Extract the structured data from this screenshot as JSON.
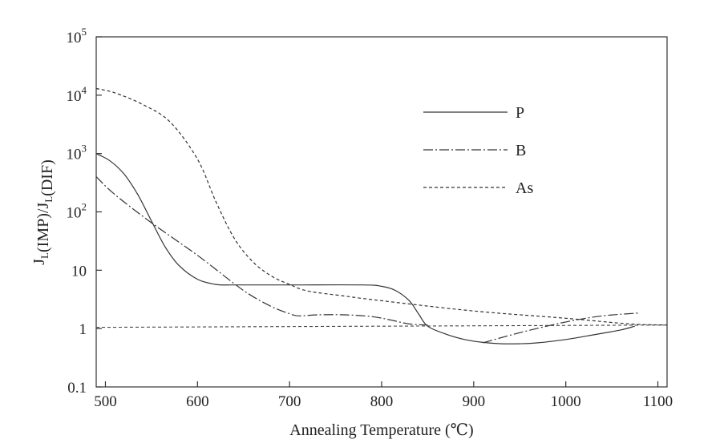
{
  "chart_data": {
    "type": "line",
    "title": "",
    "xlabel": "Annealing Temperature (℃)",
    "ylabel": {
      "parts": [
        {
          "text": "J"
        },
        {
          "text": "L",
          "sub": true
        },
        {
          "text": "(IMP)/J"
        },
        {
          "text": "L",
          "sub": true
        },
        {
          "text": "(DIF)"
        }
      ]
    },
    "xlim": [
      490,
      1110
    ],
    "ylim": [
      0.1,
      100000
    ],
    "yscale": "log",
    "grid": false,
    "legend_position": "top-right",
    "x_ticks": [
      500,
      600,
      700,
      800,
      900,
      1000,
      1100
    ],
    "x_tick_labels": [
      "500",
      "600",
      "700",
      "800",
      "900",
      "1000",
      "1100"
    ],
    "y_ticks": [
      {
        "value": 0.1,
        "base": "0.1",
        "exp": ""
      },
      {
        "value": 1,
        "base": "1",
        "exp": ""
      },
      {
        "value": 10,
        "base": "10",
        "exp": ""
      },
      {
        "value": 100,
        "base": "10",
        "exp": "2"
      },
      {
        "value": 1000,
        "base": "10",
        "exp": "3"
      },
      {
        "value": 10000,
        "base": "10",
        "exp": "4"
      },
      {
        "value": 100000,
        "base": "10",
        "exp": "5"
      }
    ],
    "reference_line": {
      "y_start": 1.05,
      "y_end": 1.15,
      "style": "dashed"
    },
    "series": [
      {
        "name": "P",
        "style": "solid",
        "x": [
          490,
          505,
          520,
          535,
          550,
          565,
          580,
          600,
          620,
          640,
          700,
          780,
          800,
          815,
          830,
          840,
          850,
          870,
          890,
          910,
          930,
          950,
          970,
          1000,
          1030,
          1060,
          1075
        ],
        "y": [
          1000,
          750,
          450,
          200,
          70,
          25,
          12,
          7,
          5.7,
          5.6,
          5.6,
          5.6,
          5.3,
          4.5,
          3,
          1.8,
          1.1,
          0.8,
          0.65,
          0.58,
          0.55,
          0.55,
          0.57,
          0.65,
          0.78,
          0.95,
          1.1
        ]
      },
      {
        "name": "B",
        "style": "dash-dot",
        "x": [
          490,
          510,
          550,
          600,
          650,
          680,
          700,
          710,
          730,
          760,
          790,
          810,
          830,
          850
        ],
        "y": [
          400,
          200,
          65,
          18,
          4.5,
          2.4,
          1.8,
          1.65,
          1.72,
          1.72,
          1.6,
          1.4,
          1.2,
          1.15
        ],
        "x2": [
          910,
          950,
          1000,
          1040,
          1080
        ],
        "y2": [
          0.57,
          0.85,
          1.3,
          1.65,
          1.85
        ]
      },
      {
        "name": "As",
        "style": "dashed",
        "x": [
          490,
          510,
          540,
          570,
          600,
          620,
          640,
          660,
          680,
          700,
          720,
          760,
          800,
          900,
          1000,
          1070,
          1110
        ],
        "y": [
          13000,
          11000,
          7000,
          3500,
          800,
          150,
          35,
          14,
          8,
          5.7,
          4.4,
          3.6,
          3,
          2,
          1.5,
          1.2,
          1.15
        ]
      }
    ]
  }
}
